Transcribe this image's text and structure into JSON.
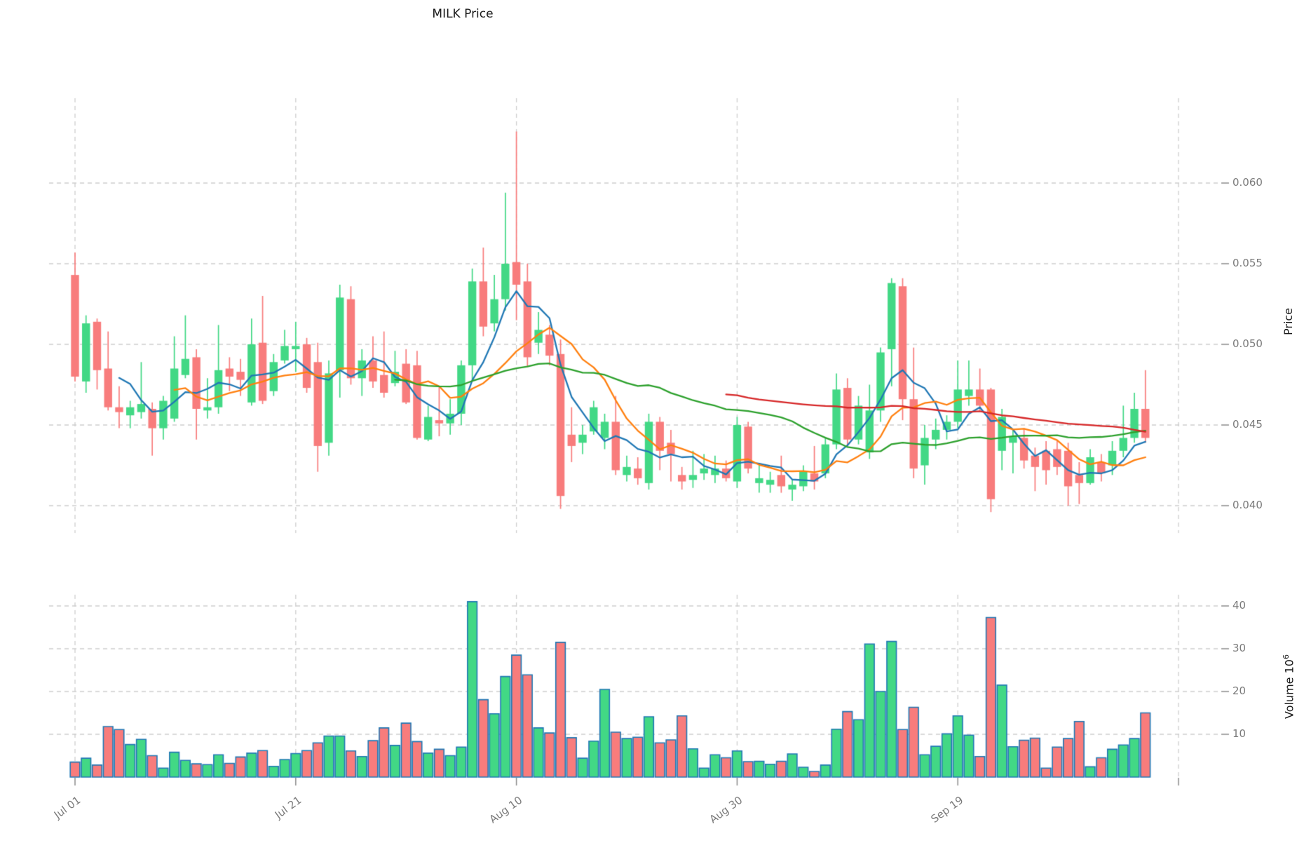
{
  "chart": {
    "title": "MILK Price",
    "price_axis_title": "Price",
    "volume_axis_title": "Volume 10",
    "volume_axis_exponent": "6"
  },
  "chart_data": {
    "type": "candlestick",
    "subpanels": [
      "price",
      "volume"
    ],
    "title": "MILK Price",
    "ylabel_price": "Price",
    "ylabel_volume": "Volume 10^6",
    "grid": "dashed",
    "price_ticks": [
      {
        "value": 0.06,
        "label": "0.060"
      },
      {
        "value": 0.055,
        "label": "0.055"
      },
      {
        "value": 0.05,
        "label": "0.050"
      },
      {
        "value": 0.045,
        "label": "0.045"
      },
      {
        "value": 0.04,
        "label": "0.040"
      }
    ],
    "volume_ticks": [
      {
        "value": 40,
        "label": "40"
      },
      {
        "value": 30,
        "label": "30"
      },
      {
        "value": 20,
        "label": "20"
      },
      {
        "value": 10,
        "label": "10"
      }
    ],
    "x_ticks": [
      {
        "index": 0,
        "label": "Jul 01"
      },
      {
        "index": 20,
        "label": "Jul 21"
      },
      {
        "index": 40,
        "label": "Aug 10"
      },
      {
        "index": 60,
        "label": "Aug 30"
      },
      {
        "index": 80,
        "label": "Sep 19"
      },
      {
        "index": 100,
        "label": ""
      }
    ],
    "moving_averages": [
      {
        "window": 5,
        "color": "#1f77b4"
      },
      {
        "window": 10,
        "color": "#ff7f0e"
      },
      {
        "window": 30,
        "color": "#2ca02c"
      },
      {
        "window": 60,
        "color": "#d62728"
      }
    ],
    "colors": {
      "up": "#42d885",
      "down": "#f87c7c",
      "volume_edge": "#1f77b4",
      "grid": "#cdcdcd",
      "tick": "#8a8a8a",
      "tick_label": "#7a7a7a",
      "title_text": "#1a1a1a"
    },
    "price_range": [
      0.0385,
      0.0635
    ],
    "volume_range": [
      0,
      45
    ],
    "dates": [
      "Jul 01",
      "Jul 02",
      "Jul 03",
      "Jul 04",
      "Jul 05",
      "Jul 06",
      "Jul 07",
      "Jul 08",
      "Jul 09",
      "Jul 10",
      "Jul 11",
      "Jul 12",
      "Jul 13",
      "Jul 14",
      "Jul 15",
      "Jul 16",
      "Jul 17",
      "Jul 18",
      "Jul 19",
      "Jul 20",
      "Jul 21",
      "Jul 22",
      "Jul 23",
      "Jul 24",
      "Jul 25",
      "Jul 26",
      "Jul 27",
      "Jul 28",
      "Jul 29",
      "Jul 30",
      "Jul 31",
      "Aug 01",
      "Aug 02",
      "Aug 03",
      "Aug 04",
      "Aug 05",
      "Aug 06",
      "Aug 07",
      "Aug 08",
      "Aug 09",
      "Aug 10",
      "Aug 11",
      "Aug 12",
      "Aug 13",
      "Aug 14",
      "Aug 15",
      "Aug 16",
      "Aug 17",
      "Aug 18",
      "Aug 19",
      "Aug 20",
      "Aug 21",
      "Aug 22",
      "Aug 23",
      "Aug 24",
      "Aug 25",
      "Aug 26",
      "Aug 27",
      "Aug 28",
      "Aug 29",
      "Aug 30",
      "Aug 31",
      "Sep 01",
      "Sep 02",
      "Sep 03",
      "Sep 04",
      "Sep 05",
      "Sep 06",
      "Sep 07",
      "Sep 08",
      "Sep 09",
      "Sep 10",
      "Sep 11",
      "Sep 12",
      "Sep 13",
      "Sep 14",
      "Sep 15",
      "Sep 16",
      "Sep 17",
      "Sep 18",
      "Sep 19",
      "Sep 20",
      "Sep 21",
      "Sep 22",
      "Sep 23",
      "Sep 24",
      "Sep 25",
      "Sep 26",
      "Sep 27",
      "Sep 28",
      "Sep 29",
      "Sep 30",
      "Oct 01",
      "Oct 02",
      "Oct 03",
      "Oct 04",
      "Oct 05",
      "Oct 06"
    ],
    "ohlcv": [
      [
        0.0543,
        0.0557,
        0.0477,
        0.048,
        3.5
      ],
      [
        0.0477,
        0.0518,
        0.047,
        0.0513,
        4.4
      ],
      [
        0.0514,
        0.0516,
        0.0472,
        0.0484,
        2.8
      ],
      [
        0.0485,
        0.0508,
        0.0459,
        0.0461,
        11.8
      ],
      [
        0.0461,
        0.0474,
        0.0448,
        0.0458,
        11.1
      ],
      [
        0.0456,
        0.0465,
        0.0448,
        0.0461,
        7.6
      ],
      [
        0.0458,
        0.0489,
        0.0454,
        0.0463,
        8.8
      ],
      [
        0.046,
        0.0464,
        0.0431,
        0.0448,
        5.0
      ],
      [
        0.0448,
        0.0468,
        0.0441,
        0.0465,
        2.1
      ],
      [
        0.0454,
        0.0505,
        0.0452,
        0.0485,
        5.8
      ],
      [
        0.0481,
        0.0518,
        0.0479,
        0.0491,
        3.9
      ],
      [
        0.0492,
        0.0497,
        0.0441,
        0.046,
        3.1
      ],
      [
        0.0459,
        0.0479,
        0.0454,
        0.0461,
        2.9
      ],
      [
        0.0461,
        0.0512,
        0.0457,
        0.0484,
        5.2
      ],
      [
        0.0485,
        0.0492,
        0.0471,
        0.048,
        3.2
      ],
      [
        0.0483,
        0.0491,
        0.0468,
        0.0478,
        4.7
      ],
      [
        0.0464,
        0.0516,
        0.0462,
        0.05,
        5.6
      ],
      [
        0.0501,
        0.053,
        0.0463,
        0.0465,
        6.2
      ],
      [
        0.0471,
        0.0494,
        0.0468,
        0.0489,
        2.5
      ],
      [
        0.049,
        0.0509,
        0.0488,
        0.0499,
        4.1
      ],
      [
        0.0497,
        0.0514,
        0.0483,
        0.0499,
        5.5
      ],
      [
        0.05,
        0.0504,
        0.047,
        0.0473,
        6.2
      ],
      [
        0.0489,
        0.0501,
        0.0421,
        0.0437,
        8.0
      ],
      [
        0.0439,
        0.049,
        0.0431,
        0.0482,
        9.6
      ],
      [
        0.0484,
        0.0537,
        0.0467,
        0.0529,
        9.6
      ],
      [
        0.0528,
        0.0536,
        0.0475,
        0.0479,
        6.1
      ],
      [
        0.0479,
        0.0497,
        0.0468,
        0.049,
        4.8
      ],
      [
        0.049,
        0.0505,
        0.0473,
        0.0477,
        8.5
      ],
      [
        0.0481,
        0.0508,
        0.0467,
        0.047,
        11.5
      ],
      [
        0.0476,
        0.0496,
        0.0474,
        0.0483,
        7.4
      ],
      [
        0.0488,
        0.0497,
        0.0463,
        0.0464,
        12.6
      ],
      [
        0.0487,
        0.0496,
        0.0441,
        0.0442,
        8.3
      ],
      [
        0.0441,
        0.0462,
        0.044,
        0.0455,
        5.6
      ],
      [
        0.0453,
        0.0474,
        0.0443,
        0.0451,
        6.5
      ],
      [
        0.0451,
        0.0466,
        0.0444,
        0.0457,
        5.0
      ],
      [
        0.0457,
        0.049,
        0.045,
        0.0487,
        7.0
      ],
      [
        0.0487,
        0.0547,
        0.0478,
        0.0539,
        41.0
      ],
      [
        0.0539,
        0.056,
        0.0505,
        0.0511,
        18.1
      ],
      [
        0.0513,
        0.0543,
        0.0508,
        0.0528,
        14.8
      ],
      [
        0.0528,
        0.0594,
        0.0521,
        0.055,
        23.5
      ],
      [
        0.0551,
        0.0632,
        0.0515,
        0.0537,
        28.5
      ],
      [
        0.0539,
        0.055,
        0.0486,
        0.0492,
        23.9
      ],
      [
        0.0501,
        0.052,
        0.0494,
        0.0509,
        11.5
      ],
      [
        0.0506,
        0.0512,
        0.0487,
        0.0493,
        10.3
      ],
      [
        0.0494,
        0.0503,
        0.0398,
        0.0406,
        31.5
      ],
      [
        0.0444,
        0.0461,
        0.0427,
        0.0437,
        9.2
      ],
      [
        0.0439,
        0.045,
        0.0432,
        0.0444,
        4.4
      ],
      [
        0.0446,
        0.0465,
        0.0444,
        0.0461,
        8.4
      ],
      [
        0.0442,
        0.0457,
        0.0435,
        0.0452,
        20.5
      ],
      [
        0.0452,
        0.0468,
        0.0419,
        0.0422,
        10.5
      ],
      [
        0.0419,
        0.0431,
        0.0415,
        0.0424,
        9.0
      ],
      [
        0.0423,
        0.043,
        0.0413,
        0.0417,
        9.3
      ],
      [
        0.0414,
        0.0457,
        0.041,
        0.0452,
        14.1
      ],
      [
        0.0452,
        0.0455,
        0.0422,
        0.0434,
        8.0
      ],
      [
        0.0439,
        0.0447,
        0.0415,
        0.0432,
        8.7
      ],
      [
        0.0419,
        0.0424,
        0.041,
        0.0415,
        14.3
      ],
      [
        0.0416,
        0.0434,
        0.0411,
        0.0419,
        6.6
      ],
      [
        0.042,
        0.0432,
        0.0416,
        0.0423,
        2.1
      ],
      [
        0.0419,
        0.0431,
        0.0414,
        0.0423,
        5.2
      ],
      [
        0.0423,
        0.0428,
        0.0415,
        0.0417,
        4.5
      ],
      [
        0.0415,
        0.0455,
        0.0411,
        0.045,
        6.1
      ],
      [
        0.0449,
        0.0452,
        0.042,
        0.0423,
        3.6
      ],
      [
        0.0414,
        0.0425,
        0.0408,
        0.0417,
        3.7
      ],
      [
        0.0413,
        0.0421,
        0.0408,
        0.0416,
        3.0
      ],
      [
        0.0419,
        0.0431,
        0.0408,
        0.0412,
        3.7
      ],
      [
        0.041,
        0.0416,
        0.0403,
        0.0413,
        5.4
      ],
      [
        0.0412,
        0.0425,
        0.0409,
        0.0421,
        2.3
      ],
      [
        0.042,
        0.0437,
        0.041,
        0.0415,
        1.3
      ],
      [
        0.042,
        0.0442,
        0.0417,
        0.0438,
        2.8
      ],
      [
        0.0438,
        0.0482,
        0.0435,
        0.0472,
        11.2
      ],
      [
        0.0473,
        0.0479,
        0.0437,
        0.0441,
        15.3
      ],
      [
        0.0441,
        0.0468,
        0.0438,
        0.0462,
        13.4
      ],
      [
        0.0433,
        0.0475,
        0.0429,
        0.0459,
        31.1
      ],
      [
        0.0459,
        0.0498,
        0.0452,
        0.0495,
        20.0
      ],
      [
        0.0497,
        0.0541,
        0.0474,
        0.0538,
        31.7
      ],
      [
        0.0536,
        0.0541,
        0.0453,
        0.0466,
        11.1
      ],
      [
        0.0466,
        0.0498,
        0.0417,
        0.0423,
        16.3
      ],
      [
        0.0425,
        0.045,
        0.0413,
        0.0442,
        5.2
      ],
      [
        0.0441,
        0.0454,
        0.0435,
        0.0447,
        7.2
      ],
      [
        0.0447,
        0.0456,
        0.0441,
        0.0452,
        10.1
      ],
      [
        0.0452,
        0.049,
        0.0448,
        0.0472,
        14.3
      ],
      [
        0.0468,
        0.049,
        0.0462,
        0.0472,
        9.8
      ],
      [
        0.0472,
        0.0485,
        0.0459,
        0.0462,
        4.8
      ],
      [
        0.0472,
        0.0473,
        0.0396,
        0.0404,
        37.3
      ],
      [
        0.0434,
        0.046,
        0.0422,
        0.0455,
        21.5
      ],
      [
        0.0439,
        0.0447,
        0.042,
        0.0443,
        7.1
      ],
      [
        0.0442,
        0.0448,
        0.0423,
        0.0428,
        8.6
      ],
      [
        0.0431,
        0.0436,
        0.0409,
        0.0424,
        9.1
      ],
      [
        0.0434,
        0.044,
        0.0413,
        0.0422,
        2.1
      ],
      [
        0.0435,
        0.044,
        0.0419,
        0.0424,
        7.0
      ],
      [
        0.0434,
        0.0439,
        0.04,
        0.0412,
        9.0
      ],
      [
        0.0419,
        0.0427,
        0.0401,
        0.0414,
        13.0
      ],
      [
        0.0414,
        0.0435,
        0.0413,
        0.043,
        2.4
      ],
      [
        0.0427,
        0.0432,
        0.0415,
        0.042,
        4.5
      ],
      [
        0.0425,
        0.044,
        0.0419,
        0.0434,
        6.5
      ],
      [
        0.0434,
        0.0462,
        0.043,
        0.0442,
        7.5
      ],
      [
        0.0442,
        0.047,
        0.0439,
        0.046,
        9.0
      ],
      [
        0.046,
        0.0484,
        0.0439,
        0.0442,
        15.0
      ]
    ]
  }
}
